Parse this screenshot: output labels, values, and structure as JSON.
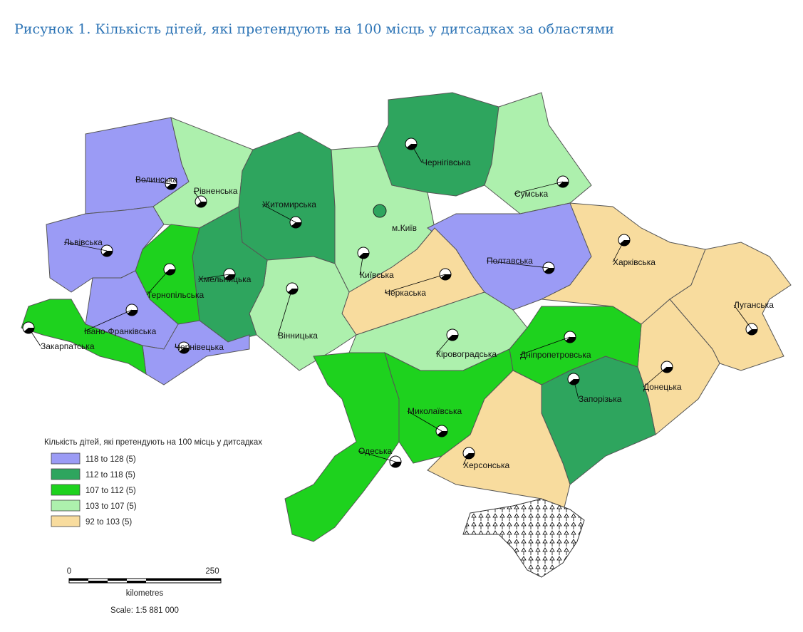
{
  "title": "Рисунок 1. Кількість дітей, які претендують на 100 місць у дитсадках за областями",
  "regions": [
    {
      "name": "Волинська",
      "color": "#9b9bf5"
    },
    {
      "name": "Рівненська",
      "color": "#adf0ad"
    },
    {
      "name": "Житомирська",
      "color": "#2ea55e"
    },
    {
      "name": "Київська",
      "color": "#adf0ad"
    },
    {
      "name": "Чернігівська",
      "color": "#2ea55e"
    },
    {
      "name": "Сумська",
      "color": "#adf0ad"
    },
    {
      "name": "Полтавська",
      "color": "#9b9bf5"
    },
    {
      "name": "Харківська",
      "color": "#f8dc9e"
    },
    {
      "name": "Луганська",
      "color": "#f8dc9e"
    },
    {
      "name": "Донецька",
      "color": "#f8dc9e"
    },
    {
      "name": "Запорізька",
      "color": "#2ea55e"
    },
    {
      "name": "Дніпропетровська",
      "color": "#1ed21e"
    },
    {
      "name": "Черкаська",
      "color": "#f8dc9e"
    },
    {
      "name": "Вінницька",
      "color": "#adf0ad"
    },
    {
      "name": "Хмельницька",
      "color": "#2ea55e"
    },
    {
      "name": "Тернопільська",
      "color": "#1ed21e"
    },
    {
      "name": "Львівська",
      "color": "#9b9bf5"
    },
    {
      "name": "Івано-Франківська",
      "color": "#9b9bf5"
    },
    {
      "name": "Чернівецька",
      "color": "#9b9bf5"
    },
    {
      "name": "Закарпатська",
      "color": "#1ed21e"
    },
    {
      "name": "Кіровоградська",
      "color": "#adf0ad"
    },
    {
      "name": "Миколаївська",
      "color": "#1ed21e"
    },
    {
      "name": "Одеська",
      "color": "#1ed21e"
    },
    {
      "name": "Херсонська",
      "color": "#f8dc9e"
    },
    {
      "name": "м.Київ",
      "color": "#2ea55e"
    }
  ],
  "legend": {
    "title": "Кількість дітей, які претендують на 100 місць у дитсадках",
    "items": [
      {
        "label": "118 to 128 (5)",
        "color": "#9b9bf5"
      },
      {
        "label": "112 to 118 (5)",
        "color": "#2ea55e"
      },
      {
        "label": "107 to 112 (5)",
        "color": "#1ed21e"
      },
      {
        "label": "103 to 107 (5)",
        "color": "#adf0ad"
      },
      {
        "label": "92 to 103 (5)",
        "color": "#f8dc9e"
      }
    ]
  },
  "scale_bar": {
    "start": "0",
    "end": "250",
    "unit": "kilometres",
    "scale": "Scale: 1:5 881 000"
  }
}
